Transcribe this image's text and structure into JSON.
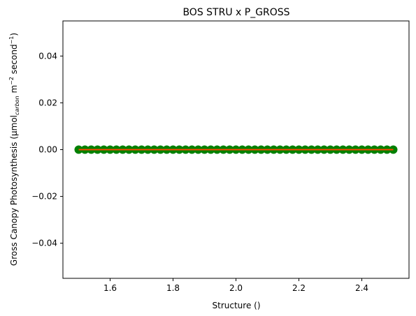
{
  "chart_data": {
    "type": "scatter",
    "title": "BOS STRU x P_GROSS",
    "xlabel": "Structure ()",
    "ylabel": {
      "prefix": "Gross Canopy Photosynthesis (μmol",
      "subscript": "carbon",
      "middle": " m",
      "sup1": "−2",
      "middle2": " second",
      "sup2": "−1",
      "suffix": ")"
    },
    "xlim": [
      1.45,
      2.55
    ],
    "ylim": [
      -0.055,
      0.055
    ],
    "x_ticks": [
      1.6,
      1.8,
      2.0,
      2.2,
      2.4
    ],
    "x_tick_labels": [
      "1.6",
      "1.8",
      "2.0",
      "2.2",
      "2.4"
    ],
    "y_ticks": [
      0.04,
      0.02,
      0.0,
      -0.02,
      -0.04
    ],
    "y_tick_labels": [
      "0.04",
      "0.02",
      "0.00",
      "−0.02",
      "−0.04"
    ],
    "grid": false,
    "series": [
      {
        "kind": "points",
        "color": "#008000",
        "x": [
          1.5,
          1.52,
          1.54,
          1.56,
          1.58,
          1.6,
          1.62,
          1.64,
          1.66,
          1.68,
          1.7,
          1.72,
          1.74,
          1.76,
          1.78,
          1.8,
          1.82,
          1.84,
          1.86,
          1.88,
          1.9,
          1.92,
          1.94,
          1.96,
          1.98,
          2.0,
          2.02,
          2.04,
          2.06,
          2.08,
          2.1,
          2.12,
          2.14,
          2.16,
          2.18,
          2.2,
          2.22,
          2.24,
          2.26,
          2.28,
          2.3,
          2.32,
          2.34,
          2.36,
          2.38,
          2.4,
          2.42,
          2.44,
          2.46,
          2.48,
          2.5
        ],
        "y": [
          0,
          0,
          0,
          0,
          0,
          0,
          0,
          0,
          0,
          0,
          0,
          0,
          0,
          0,
          0,
          0,
          0,
          0,
          0,
          0,
          0,
          0,
          0,
          0,
          0,
          0,
          0,
          0,
          0,
          0,
          0,
          0,
          0,
          0,
          0,
          0,
          0,
          0,
          0,
          0,
          0,
          0,
          0,
          0,
          0,
          0,
          0,
          0,
          0,
          0,
          0
        ]
      },
      {
        "kind": "line",
        "color": "#ff4500",
        "x": [
          1.5,
          2.5
        ],
        "y": [
          0,
          0
        ]
      }
    ]
  }
}
